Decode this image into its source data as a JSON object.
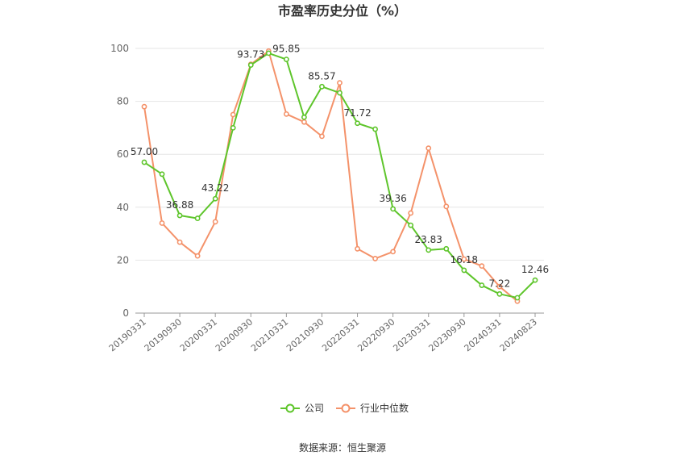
{
  "chart_data": {
    "type": "line",
    "title": "市盈率历史分位（%）",
    "xlabel": "",
    "ylabel": "",
    "ylim": [
      0,
      100
    ],
    "yticks": [
      0,
      20,
      40,
      60,
      80,
      100
    ],
    "x": [
      "20190331",
      "20190630",
      "20190930",
      "20191231",
      "20200331",
      "20200630",
      "20200930",
      "20201231",
      "20210331",
      "20210630",
      "20210930",
      "20211231",
      "20220331",
      "20220630",
      "20220930",
      "20221231",
      "20230331",
      "20230630",
      "20230930",
      "20231231",
      "20240331",
      "20240630",
      "20240823"
    ],
    "x_tick_labels": [
      "20190331",
      "20190930",
      "20200331",
      "20200930",
      "20210331",
      "20210930",
      "20220331",
      "20220930",
      "20230331",
      "20230930",
      "20240331",
      "20240823"
    ],
    "x_tick_indices": [
      0,
      2,
      4,
      6,
      8,
      10,
      12,
      14,
      16,
      18,
      20,
      22
    ],
    "series": [
      {
        "name": "公司",
        "color": "#5ec52b",
        "values": [
          57.0,
          52.5,
          36.88,
          35.8,
          43.22,
          70.0,
          93.73,
          98.2,
          95.85,
          74.0,
          85.57,
          83.2,
          71.72,
          69.5,
          39.36,
          33.2,
          23.83,
          24.3,
          16.18,
          10.5,
          7.22,
          5.8,
          12.46
        ],
        "labels": {
          "0": "57.00",
          "2": "36.88",
          "4": "43.22",
          "6": "93.73",
          "8": "95.85",
          "10": "85.57",
          "12": "71.72",
          "14": "39.36",
          "16": "23.83",
          "18": "16.18",
          "20": "7.22",
          "22": "12.46"
        }
      },
      {
        "name": "行业中位数",
        "color": "#f4926a",
        "values": [
          78.0,
          34.0,
          26.8,
          21.6,
          34.5,
          75.0,
          94.0,
          99.0,
          75.2,
          72.2,
          66.8,
          87.0,
          24.3,
          20.6,
          23.2,
          37.8,
          62.3,
          40.3,
          20.4,
          17.8,
          10.0,
          4.5,
          null
        ]
      }
    ],
    "legend_position": "bottom",
    "grid": true,
    "source_text": "数据来源：恒生聚源"
  }
}
